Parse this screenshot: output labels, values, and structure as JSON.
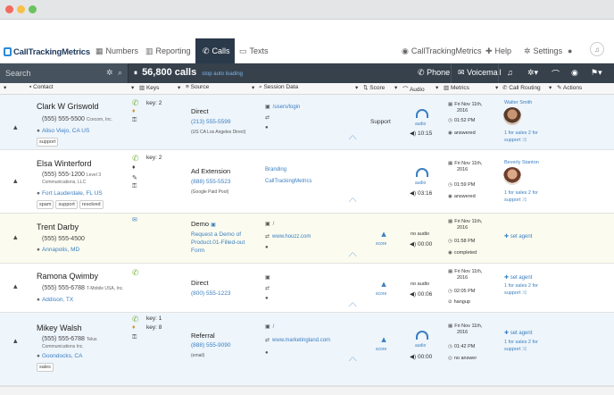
{
  "colors": {
    "chrome": "#e4e5e7",
    "nav_active": "#2b3a4a",
    "toolbar": "#36414c",
    "link": "#3a7fc1",
    "call_green": "#7ab648",
    "dot_red": "#f26b5e",
    "dot_yellow": "#f6c049",
    "dot_green": "#6cc25e"
  },
  "window_controls": {
    "close": "close-dot",
    "minimize": "minimize-dot",
    "zoom": "zoom-dot"
  },
  "brand": "CallTrackingMetrics",
  "nav": {
    "items": [
      {
        "label": "Numbers",
        "icon": "grid-icon"
      },
      {
        "label": "Reporting",
        "icon": "chart-icon"
      },
      {
        "label": "Calls",
        "icon": "phone-icon"
      },
      {
        "label": "Texts",
        "icon": "chat-icon"
      }
    ],
    "right": [
      {
        "label": "CallTrackingMetrics",
        "icon": "eye-icon"
      },
      {
        "label": "Help",
        "icon": "help-icon"
      },
      {
        "label": "Settings",
        "icon": "gear-icon"
      }
    ]
  },
  "toolbar": {
    "search_placeholder": "Search",
    "calls_count": "56,800 calls",
    "auto_loading": "stop auto loading",
    "phone_label": "Phone",
    "voicemail_label": "Voicemail"
  },
  "columns": [
    "Contact",
    "Keys",
    "Source",
    "Session Data",
    "Score",
    "Audio",
    "Metrics",
    "Call Routing",
    "Actions"
  ],
  "rows": [
    {
      "name": "Clark W Griswold",
      "phone": "(555) 555-5500",
      "org": "Ccecom, Inc.",
      "location": "Aliso Viejo, CA US",
      "tags": [
        "support"
      ],
      "keys": [
        "key: 2"
      ],
      "source": "Direct",
      "source_number": "(213) 555-5599",
      "source_sub": "(US CA Los Angeles Direct)",
      "session": [
        "/users/login",
        "",
        ""
      ],
      "score": "Support",
      "audio_label": "audio",
      "audio_len": "10:15",
      "metrics": [
        "Fri Nov 11th,",
        "2016",
        "01:52 PM",
        "answered"
      ],
      "agent": "Walter Smith",
      "routing": [
        "1 for sales 2 for",
        "support"
      ]
    },
    {
      "name": "Elsa Winterford",
      "phone": "(555) 555-1200",
      "org": "Level 3 Communications, LLC",
      "location": "Fort Lauderdale, FL US",
      "tags": [
        "spam",
        "support",
        "resolved"
      ],
      "keys": [
        "key: 2"
      ],
      "source": "Ad Extension",
      "source_number": "(888) 555-5523",
      "source_sub": "(Google Paid Pool)",
      "session": [
        "Branding",
        "CallTrackingMetrics"
      ],
      "score": "",
      "audio_label": "audio",
      "audio_len": "03:16",
      "metrics": [
        "Fri Nov 11th,",
        "2016",
        "01:59 PM",
        "answered"
      ],
      "agent": "Beverly Stanton",
      "routing": [
        "1 for sales 2 for",
        "support"
      ]
    },
    {
      "name": "Trent Darby",
      "phone": "(555) 555-4500",
      "org": "",
      "location": "Annapolis, MD",
      "tags": [],
      "keys": [],
      "source": "Demo",
      "source_number": "",
      "source_sub": "",
      "source_links": [
        "Request a Demo of",
        "Product.01-Filled-out",
        "Form"
      ],
      "session": [
        "/",
        "www.houzz.com",
        ""
      ],
      "score": "score",
      "audio_label": "no audio",
      "audio_len": "00:00",
      "metrics": [
        "Fri Nov 11th,",
        "2016",
        "01:58 PM",
        "completed"
      ],
      "agent": "",
      "set_agent": "set agent"
    },
    {
      "name": "Ramona Qwimby",
      "phone": "(555) 555-6788",
      "org": "T-Mobile USA, Inc.",
      "location": "Addison, TX",
      "tags": [],
      "keys": [],
      "source": "Direct",
      "source_number": "(800) 555-1223",
      "source_sub": "",
      "session": [
        "",
        ""
      ],
      "score": "score",
      "audio_label": "no audio",
      "audio_len": "00:06",
      "metrics": [
        "Fri Nov 11th,",
        "2016",
        "02:05 PM",
        "hangup"
      ],
      "set_agent": "set agent",
      "routing": [
        "1 for sales 2 for",
        "support"
      ]
    },
    {
      "name": "Mikey Walsh",
      "phone": "(555) 555-6788",
      "org": "Telus Communications Inc.",
      "location": "Goondocks, CA",
      "tags": [
        "sales"
      ],
      "keys": [
        "key: 1",
        "key: 8"
      ],
      "source": "Referral",
      "source_number": "(888) 555-9090",
      "source_sub": "(email)",
      "session": [
        "/",
        "www.marketingland.com",
        ""
      ],
      "score": "score",
      "audio_label": "audio",
      "audio_len": "00:00",
      "metrics": [
        "Fri Nov 11th,",
        "2016",
        "01:42 PM",
        "no answer"
      ],
      "set_agent": "set agent",
      "routing": [
        "1 for sales 2 for",
        "support"
      ]
    }
  ]
}
